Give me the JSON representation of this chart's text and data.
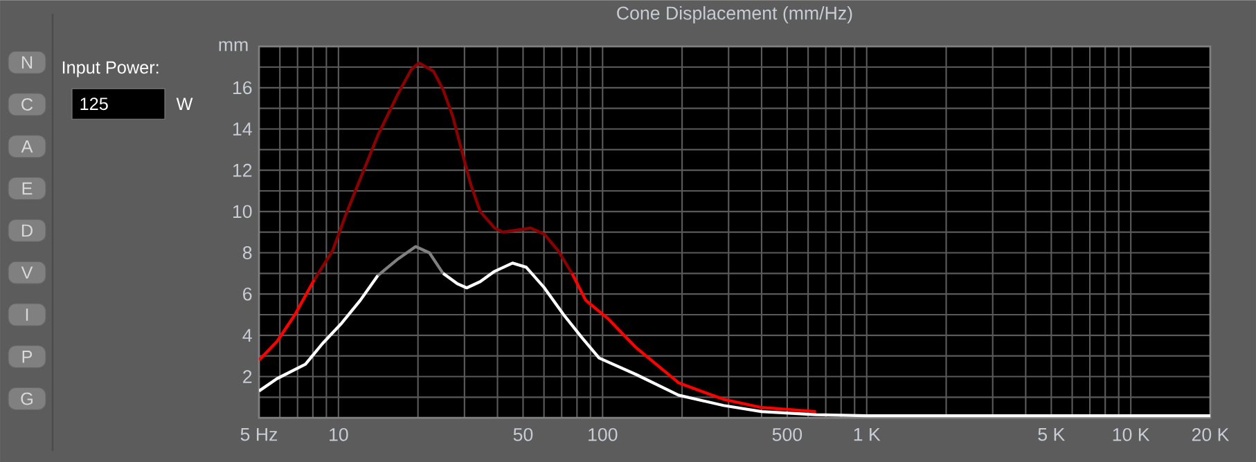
{
  "chart_data": {
    "type": "line",
    "title": "Cone Displacement (mm/Hz)",
    "ylabel": "mm",
    "log": "x",
    "grid": true,
    "xlim": [
      5,
      20000
    ],
    "ylim": [
      0,
      18
    ],
    "xticks": [
      {
        "value": 5,
        "label": "5 Hz"
      },
      {
        "value": 6,
        "label": null
      },
      {
        "value": 7,
        "label": null
      },
      {
        "value": 8,
        "label": null
      },
      {
        "value": 9,
        "label": null
      },
      10,
      {
        "value": 20,
        "label": null
      },
      {
        "value": 30,
        "label": null
      },
      {
        "value": 40,
        "label": null
      },
      50,
      {
        "value": 60,
        "label": null
      },
      {
        "value": 70,
        "label": null
      },
      {
        "value": 80,
        "label": null
      },
      {
        "value": 90,
        "label": null
      },
      100,
      {
        "value": 200,
        "label": null
      },
      {
        "value": 300,
        "label": null
      },
      {
        "value": 400,
        "label": null
      },
      500,
      {
        "value": 600,
        "label": null
      },
      {
        "value": 700,
        "label": null
      },
      {
        "value": 800,
        "label": null
      },
      {
        "value": 900,
        "label": null
      },
      {
        "value": 1000,
        "label": "1 K"
      },
      {
        "value": 2000,
        "label": null
      },
      {
        "value": 3000,
        "label": null
      },
      {
        "value": 4000,
        "label": null
      },
      {
        "value": 5000,
        "label": "5 K"
      },
      {
        "value": 6000,
        "label": null
      },
      {
        "value": 7000,
        "label": null
      },
      {
        "value": 8000,
        "label": null
      },
      {
        "value": 9000,
        "label": null
      },
      {
        "value": 10000,
        "label": "10 K"
      },
      {
        "value": 20000,
        "label": "20 K"
      }
    ],
    "yticks": [
      {
        "value": 1,
        "label": null
      },
      2,
      {
        "value": 3,
        "label": null
      },
      4,
      {
        "value": 5,
        "label": null
      },
      6,
      {
        "value": 7,
        "label": null
      },
      8,
      {
        "value": 9,
        "label": null
      },
      10,
      {
        "value": 11,
        "label": null
      },
      12,
      {
        "value": 13,
        "label": null
      },
      14,
      {
        "value": 15,
        "label": null
      },
      16,
      {
        "value": 17,
        "label": null
      }
    ],
    "series": [
      {
        "color": "#ff0000",
        "x": [
          5,
          5.85,
          6.84,
          8.1
        ],
        "values": [
          2.8,
          3.7,
          5.0,
          6.7
        ]
      },
      {
        "color": "#8b0000",
        "x": [
          8.1,
          9.5,
          10.7,
          12.1,
          14.1,
          16.8,
          18.9,
          20.2,
          22.9,
          24.9,
          27.1,
          29.2,
          31.7,
          34.4,
          39,
          41.9,
          47.4,
          53.4,
          60.2,
          67.9,
          76.6
        ],
        "values": [
          6.7,
          8.1,
          9.9,
          11.6,
          13.7,
          15.7,
          16.9,
          17.2,
          16.8,
          15.9,
          14.6,
          13.0,
          11.3,
          10.0,
          9.2,
          9.0,
          9.1,
          9.2,
          8.9,
          8.1,
          7.0
        ]
      },
      {
        "color": "#ff0000",
        "x": [
          76.6,
          86.3,
          105,
          134,
          194,
          287,
          400,
          643
        ],
        "values": [
          7.0,
          5.7,
          4.8,
          3.4,
          1.7,
          0.9,
          0.5,
          0.3
        ]
      },
      {
        "color": "#ffffff",
        "x": [
          5,
          5.85,
          7.5,
          8.7,
          10.3,
          12.1,
          14.1
        ],
        "values": [
          1.3,
          1.9,
          2.6,
          3.6,
          4.6,
          5.7,
          6.9
        ]
      },
      {
        "color": "#808080",
        "x": [
          14.1,
          16.8,
          19.6,
          22.1,
          24.9
        ],
        "values": [
          6.9,
          7.7,
          8.3,
          8.0,
          7.0
        ]
      },
      {
        "color": "#ffffff",
        "x": [
          24.9,
          28.2,
          30.6,
          34.4,
          39,
          45.6,
          51.4,
          60.2,
          71.2,
          83.4,
          97,
          134,
          194,
          287,
          400,
          643,
          1000,
          5000,
          20000
        ],
        "values": [
          7.0,
          6.5,
          6.3,
          6.6,
          7.1,
          7.5,
          7.3,
          6.3,
          5.0,
          3.9,
          2.9,
          2.1,
          1.1,
          0.6,
          0.3,
          0.15,
          0.1,
          0.1,
          0.1
        ]
      }
    ],
    "annotations": [
      "Input Power:",
      "125",
      "W",
      "N",
      "C",
      "A",
      "E",
      "D",
      "V",
      "I",
      "P",
      "G"
    ]
  }
}
